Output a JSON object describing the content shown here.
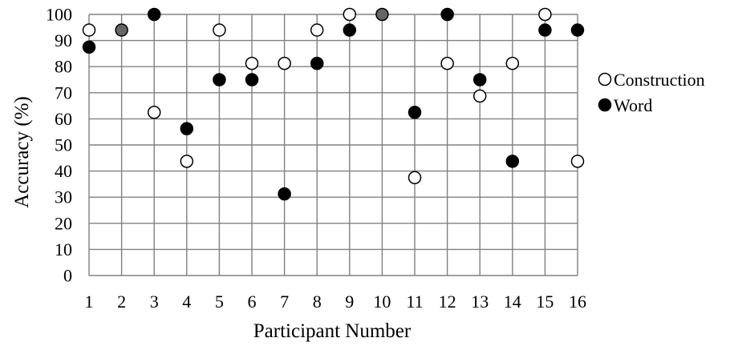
{
  "chart_data": {
    "type": "scatter",
    "title": "",
    "xlabel": "Participant Number",
    "ylabel": "Accuracy (%)",
    "x": [
      1,
      2,
      3,
      4,
      5,
      6,
      7,
      8,
      9,
      10,
      11,
      12,
      13,
      14,
      15,
      16
    ],
    "x_tick_labels": [
      "1",
      "2",
      "3",
      "4",
      "5",
      "6",
      "7",
      "8",
      "9",
      "10",
      "11",
      "12",
      "13",
      "14",
      "15",
      "16"
    ],
    "y_tick_labels": [
      "0",
      "10",
      "20",
      "30",
      "40",
      "50",
      "60",
      "70",
      "80",
      "90",
      "100"
    ],
    "xlim": [
      1,
      16
    ],
    "ylim": [
      0,
      100
    ],
    "grid": true,
    "legend_position": "right",
    "series": [
      {
        "name": "Construction",
        "marker": "open-circle",
        "values": [
          94,
          94,
          62.5,
          43.75,
          94,
          81.25,
          81.25,
          94,
          100,
          100,
          37.5,
          81.25,
          68.75,
          81.25,
          100,
          43.75
        ]
      },
      {
        "name": "Word",
        "marker": "filled-circle",
        "values": [
          87.5,
          94,
          100,
          56.25,
          75,
          75,
          31.25,
          81.25,
          94,
          100,
          62.5,
          100,
          75,
          43.75,
          94,
          94
        ]
      }
    ],
    "overlap_color": "#666666"
  }
}
